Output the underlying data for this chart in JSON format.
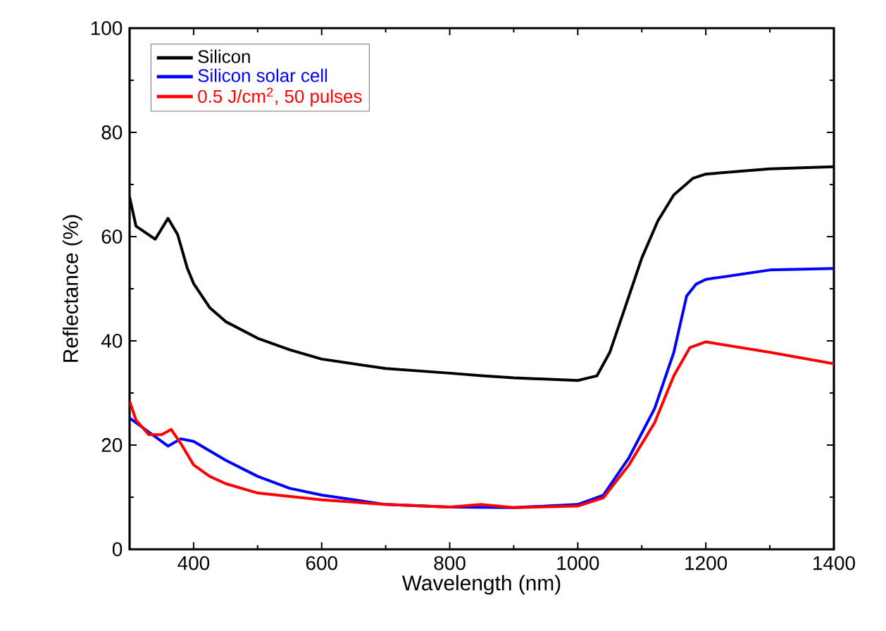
{
  "chart_data": {
    "type": "line",
    "xlabel": "Wavelength (nm)",
    "ylabel": "Reflectance (%)",
    "xlim": [
      300,
      1400
    ],
    "ylim": [
      0,
      100
    ],
    "xticks": [
      400,
      600,
      800,
      1000,
      1200,
      1400
    ],
    "yticks": [
      0,
      20,
      40,
      60,
      80,
      100
    ],
    "grid": false,
    "legend": "top left",
    "line_style": "solid",
    "marker": "none",
    "series": [
      {
        "name": "Silicon",
        "color": "#000000",
        "x": [
          300,
          310,
          340,
          360,
          375,
          390,
          400,
          425,
          450,
          500,
          550,
          600,
          700,
          800,
          850,
          900,
          1000,
          1030,
          1050,
          1075,
          1100,
          1125,
          1150,
          1180,
          1200,
          1300,
          1400
        ],
        "values": [
          67.6,
          62,
          59.5,
          63.5,
          60.4,
          54,
          51,
          46.4,
          43.7,
          40.5,
          38.3,
          36.5,
          34.7,
          33.8,
          33.3,
          32.9,
          32.4,
          33.3,
          37.8,
          46.8,
          55.9,
          63,
          68,
          71.2,
          72,
          73,
          73.4
        ]
      },
      {
        "name": "Silicon solar cell",
        "color": "#0000ff",
        "x": [
          300,
          330,
          360,
          380,
          400,
          450,
          500,
          550,
          600,
          700,
          800,
          900,
          1000,
          1040,
          1080,
          1120,
          1150,
          1170,
          1185,
          1200,
          1300,
          1400
        ],
        "values": [
          25.2,
          22.5,
          19.8,
          21.2,
          20.7,
          17.1,
          14,
          11.7,
          10.4,
          8.6,
          8.1,
          8,
          8.6,
          10.4,
          17.6,
          27,
          37.8,
          48.6,
          50.9,
          51.8,
          53.6,
          53.9
        ]
      },
      {
        "name": "0.5 J/cm$^{2}$, 50 pulses",
        "color": "#ff0000",
        "x": [
          300,
          310,
          330,
          350,
          365,
          380,
          400,
          425,
          450,
          500,
          600,
          700,
          800,
          850,
          900,
          1000,
          1040,
          1080,
          1120,
          1150,
          1175,
          1200,
          1300,
          1400
        ],
        "values": [
          28.4,
          24.8,
          22,
          22,
          23,
          20.3,
          16.2,
          14,
          12.6,
          10.8,
          9.5,
          8.6,
          8.1,
          8.6,
          8,
          8.3,
          9.9,
          16.2,
          24.3,
          33.3,
          38.7,
          39.8,
          37.8,
          35.6
        ]
      }
    ]
  }
}
